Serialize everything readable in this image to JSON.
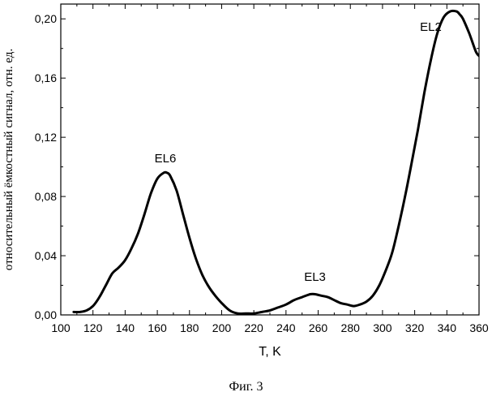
{
  "caption": "Фиг. 3",
  "chart_data": {
    "type": "line",
    "xlabel": "T, K",
    "ylabel": "относительный ёмкостный сигнал, отн. ед.",
    "xlim": [
      100,
      360
    ],
    "ylim": [
      0,
      0.21
    ],
    "x_ticks": [
      100,
      120,
      140,
      160,
      180,
      200,
      220,
      240,
      260,
      280,
      300,
      320,
      340,
      360
    ],
    "y_ticks": [
      0.0,
      0.04,
      0.08,
      0.12,
      0.16,
      0.2
    ],
    "x_tick_labels": [
      "100",
      "120",
      "140",
      "160",
      "180",
      "200",
      "220",
      "240",
      "260",
      "280",
      "300",
      "320",
      "340",
      "360"
    ],
    "y_tick_labels": [
      "0,00",
      "0,04",
      "0,08",
      "0,12",
      "0,16",
      "0,20"
    ],
    "annotations": [
      {
        "text": "EL6",
        "x": 165,
        "y": 0.103
      },
      {
        "text": "EL3",
        "x": 258,
        "y": 0.023
      },
      {
        "text": "EL2",
        "x": 330,
        "y": 0.192
      }
    ],
    "series": [
      {
        "x": [
          108,
          112,
          116,
          120,
          124,
          128,
          132,
          136,
          140,
          144,
          148,
          152,
          156,
          160,
          164,
          166,
          168,
          172,
          176,
          180,
          184,
          188,
          192,
          196,
          200,
          205,
          210,
          215,
          220,
          225,
          230,
          235,
          240,
          245,
          250,
          255,
          258,
          262,
          266,
          270,
          274,
          278,
          282,
          286,
          290,
          294,
          298,
          302,
          306,
          310,
          314,
          318,
          322,
          326,
          330,
          334,
          338,
          342,
          346,
          348,
          350,
          354,
          358,
          360
        ],
        "y": [
          0.002,
          0.002,
          0.003,
          0.006,
          0.012,
          0.02,
          0.028,
          0.032,
          0.037,
          0.045,
          0.055,
          0.068,
          0.082,
          0.092,
          0.096,
          0.096,
          0.094,
          0.084,
          0.068,
          0.052,
          0.038,
          0.027,
          0.019,
          0.013,
          0.008,
          0.003,
          0.001,
          0.001,
          0.001,
          0.002,
          0.003,
          0.005,
          0.007,
          0.01,
          0.012,
          0.014,
          0.014,
          0.013,
          0.012,
          0.01,
          0.008,
          0.007,
          0.006,
          0.007,
          0.009,
          0.013,
          0.02,
          0.03,
          0.042,
          0.06,
          0.08,
          0.102,
          0.125,
          0.15,
          0.172,
          0.19,
          0.201,
          0.205,
          0.205,
          0.203,
          0.2,
          0.19,
          0.178,
          0.175
        ]
      }
    ]
  }
}
